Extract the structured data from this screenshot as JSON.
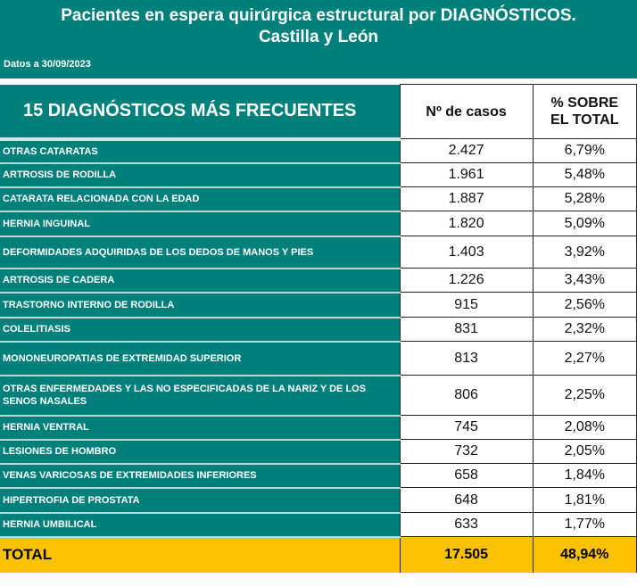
{
  "header": {
    "title_line1": "Pacientes en espera quirúrgica estructural por DIAGNÓSTICOS.",
    "title_line2": "Castilla y León",
    "date": "Datos a 30/09/2023"
  },
  "table": {
    "headers": [
      "15 DIAGNÓSTICOS MÁS FRECUENTES",
      "Nº de casos",
      "% SOBRE EL TOTAL"
    ],
    "rows": [
      {
        "diagnosis": "OTRAS CATARATAS",
        "cases": "2.427",
        "pct": "6,79%"
      },
      {
        "diagnosis": "ARTROSIS DE RODILLA",
        "cases": "1.961",
        "pct": "5,48%"
      },
      {
        "diagnosis": "CATARATA RELACIONADA CON LA EDAD",
        "cases": "1.887",
        "pct": "5,28%"
      },
      {
        "diagnosis": "HERNIA INGUINAL",
        "cases": "1.820",
        "pct": "5,09%"
      },
      {
        "diagnosis": "DEFORMIDADES ADQUIRIDAS DE LOS DEDOS DE MANOS Y PIES",
        "cases": "1.403",
        "pct": "3,92%"
      },
      {
        "diagnosis": "ARTROSIS DE CADERA",
        "cases": "1.226",
        "pct": "3,43%"
      },
      {
        "diagnosis": "TRASTORNO INTERNO DE RODILLA",
        "cases": "915",
        "pct": "2,56%"
      },
      {
        "diagnosis": "COLELITIASIS",
        "cases": "831",
        "pct": "2,32%"
      },
      {
        "diagnosis": "MONONEUROPATIAS DE EXTREMIDAD SUPERIOR",
        "cases": "813",
        "pct": "2,27%"
      },
      {
        "diagnosis": "OTRAS ENFERMEDADES Y LAS NO ESPECIFICADAS DE LA NARIZ Y DE LOS SENOS NASALES",
        "cases": "806",
        "pct": "2,25%"
      },
      {
        "diagnosis": "HERNIA VENTRAL",
        "cases": "745",
        "pct": "2,08%"
      },
      {
        "diagnosis": "LESIONES DE HOMBRO",
        "cases": "732",
        "pct": "2,05%"
      },
      {
        "diagnosis": "VENAS VARICOSAS DE EXTREMIDADES INFERIORES",
        "cases": "658",
        "pct": "1,84%"
      },
      {
        "diagnosis": "HIPERTROFIA DE PROSTATA",
        "cases": "648",
        "pct": "1,81%"
      },
      {
        "diagnosis": "HERNIA UMBILICAL",
        "cases": "633",
        "pct": "1,77%"
      }
    ],
    "total": {
      "label": "TOTAL",
      "cases": "17.505",
      "pct": "48,94%"
    }
  },
  "colors": {
    "teal": "#00807a",
    "total": "#fcc200"
  }
}
